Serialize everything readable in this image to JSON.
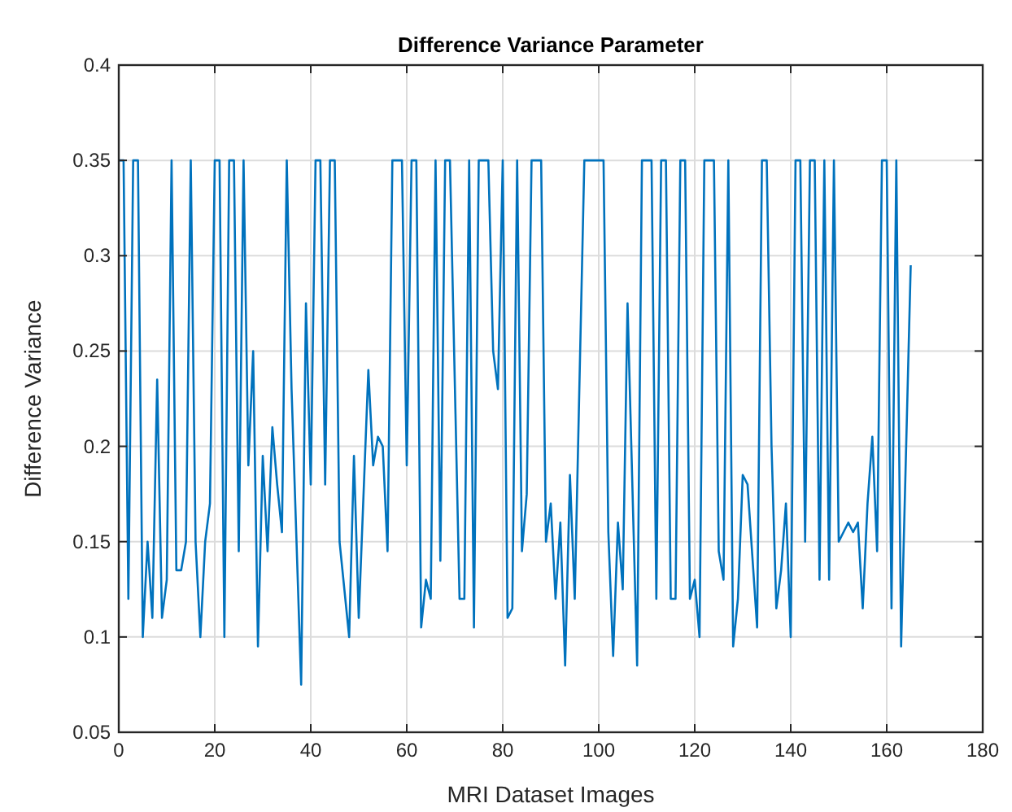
{
  "chart_data": {
    "type": "line",
    "title": "Difference Variance Parameter",
    "xlabel": "MRI Dataset Images",
    "ylabel": "Difference Variance",
    "xlim": [
      0,
      180
    ],
    "xticks": [
      0,
      20,
      40,
      60,
      80,
      100,
      120,
      140,
      160,
      180
    ],
    "ylim": [
      0.05,
      0.4
    ],
    "yticks": [
      0.05,
      0.1,
      0.15,
      0.2,
      0.25,
      0.3,
      0.35,
      0.4
    ],
    "grid": true,
    "marker": "none",
    "line_style": "solid",
    "series": [
      {
        "color": "#0072bd",
        "x": [
          0,
          1,
          2,
          3,
          4,
          5,
          6,
          7,
          8,
          9,
          10,
          11,
          12,
          13,
          14,
          15,
          16,
          17,
          18,
          19,
          20,
          21,
          22,
          23,
          24,
          25,
          26,
          27,
          28,
          29,
          30,
          31,
          32,
          33,
          34,
          35,
          36,
          38,
          39,
          40,
          41,
          42,
          43,
          44,
          45,
          46,
          48,
          49,
          50,
          52,
          53,
          54,
          55,
          56,
          57,
          59,
          60,
          61,
          62,
          63,
          64,
          65,
          66,
          67,
          68,
          69,
          71,
          72,
          73,
          74,
          75,
          77,
          78,
          79,
          80,
          81,
          82,
          83,
          84,
          85,
          86,
          88,
          89,
          90,
          91,
          92,
          93,
          94,
          95,
          97,
          101,
          102,
          103,
          104,
          105,
          106,
          108,
          109,
          111,
          112,
          113,
          114,
          115,
          116,
          117,
          118,
          119,
          120,
          121,
          122,
          124,
          125,
          126,
          127,
          128,
          129,
          130,
          131,
          133,
          134,
          135,
          136,
          137,
          138,
          139,
          140,
          141,
          142,
          143,
          144,
          145,
          146,
          147,
          148,
          149,
          150,
          152,
          153,
          154,
          155,
          156,
          157,
          158,
          159,
          160,
          161,
          162,
          163,
          165
        ],
        "values": [
          0.35,
          0.35,
          0.12,
          0.35,
          0.35,
          0.1,
          0.15,
          0.11,
          0.235,
          0.11,
          0.13,
          0.35,
          0.135,
          0.135,
          0.15,
          0.35,
          0.15,
          0.1,
          0.15,
          0.17,
          0.35,
          0.35,
          0.1,
          0.35,
          0.35,
          0.145,
          0.35,
          0.19,
          0.25,
          0.095,
          0.195,
          0.145,
          0.21,
          0.18,
          0.155,
          0.35,
          0.23,
          0.075,
          0.275,
          0.18,
          0.35,
          0.35,
          0.18,
          0.35,
          0.35,
          0.15,
          0.1,
          0.195,
          0.11,
          0.24,
          0.19,
          0.205,
          0.2,
          0.145,
          0.35,
          0.35,
          0.19,
          0.35,
          0.35,
          0.105,
          0.13,
          0.12,
          0.35,
          0.14,
          0.35,
          0.35,
          0.12,
          0.12,
          0.35,
          0.105,
          0.35,
          0.35,
          0.25,
          0.23,
          0.35,
          0.11,
          0.115,
          0.35,
          0.145,
          0.175,
          0.35,
          0.35,
          0.15,
          0.17,
          0.12,
          0.16,
          0.085,
          0.185,
          0.12,
          0.35,
          0.35,
          0.155,
          0.09,
          0.16,
          0.125,
          0.275,
          0.085,
          0.35,
          0.35,
          0.12,
          0.35,
          0.35,
          0.12,
          0.12,
          0.35,
          0.35,
          0.12,
          0.13,
          0.1,
          0.35,
          0.35,
          0.145,
          0.13,
          0.35,
          0.095,
          0.12,
          0.185,
          0.18,
          0.105,
          0.35,
          0.35,
          0.2,
          0.115,
          0.135,
          0.17,
          0.1,
          0.35,
          0.35,
          0.15,
          0.35,
          0.35,
          0.13,
          0.35,
          0.13,
          0.35,
          0.15,
          0.16,
          0.155,
          0.16,
          0.115,
          0.17,
          0.205,
          0.145,
          0.35,
          0.35,
          0.115,
          0.35,
          0.095,
          0.295
        ]
      }
    ]
  }
}
